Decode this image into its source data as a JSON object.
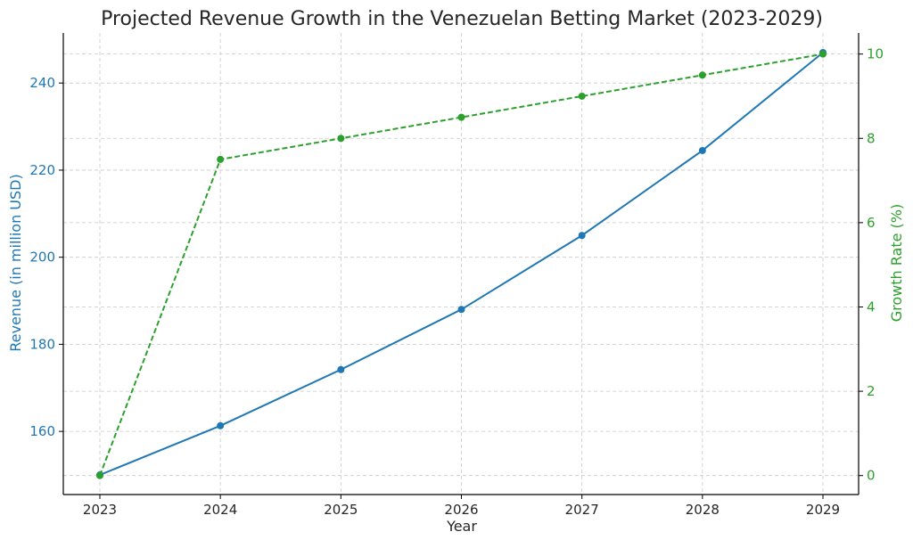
{
  "chart_data": {
    "type": "line",
    "title": "Projected Revenue Growth in the Venezuelan Betting Market (2023-2029)",
    "xlabel": "Year",
    "ylabel_left": "Revenue (in million USD)",
    "ylabel_right": "Growth Rate (%)",
    "categories": [
      "2023",
      "2024",
      "2025",
      "2026",
      "2027",
      "2028",
      "2029"
    ],
    "series": [
      {
        "name": "Revenue",
        "axis": "left",
        "style": "solid",
        "color": "#1f77b4",
        "values": [
          150.0,
          161.3,
          174.2,
          188.0,
          205.0,
          224.5,
          247.0
        ]
      },
      {
        "name": "Growth Rate",
        "axis": "right",
        "style": "dashed",
        "color": "#2ca02c",
        "values": [
          0.0,
          7.5,
          8.0,
          8.5,
          9.0,
          9.5,
          10.0
        ]
      }
    ],
    "ylim_left": [
      145.5,
      251.5
    ],
    "yticks_left": [
      "160",
      "180",
      "200",
      "220",
      "240"
    ],
    "yticks_left_values": [
      160,
      180,
      200,
      220,
      240
    ],
    "ylim_right": [
      -0.45,
      10.5
    ],
    "yticks_right": [
      "0",
      "2",
      "4",
      "6",
      "8",
      "10"
    ],
    "yticks_right_values": [
      0,
      2,
      4,
      6,
      8,
      10
    ],
    "grid": true
  }
}
